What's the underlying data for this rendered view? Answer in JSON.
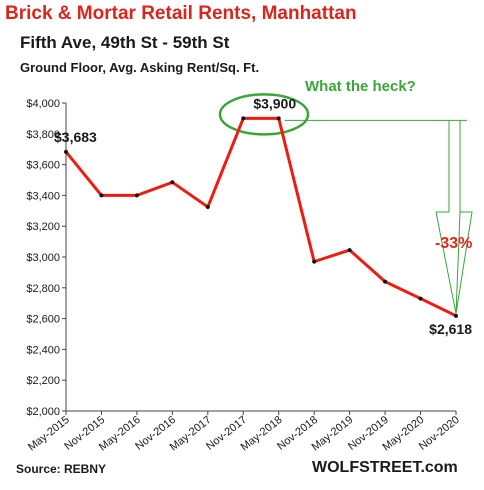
{
  "chart_data": {
    "type": "line",
    "title": "Brick & Mortar Retail Rents, Manhattan",
    "subtitle": "Fifth Ave, 49th St - 59th St",
    "subtitle2": "Ground Floor,  Avg. Asking Rent/Sq. Ft.",
    "categories": [
      "May-2015",
      "Nov-2015",
      "May-2016",
      "Nov-2016",
      "May-2017",
      "Nov-2017",
      "May-2018",
      "Nov-2018",
      "May-2019",
      "Nov-2019",
      "May-2020",
      "Nov-2020"
    ],
    "series": [
      {
        "values": [
          3683,
          3400,
          3400,
          3485,
          3325,
          3900,
          3900,
          2970,
          3045,
          2840,
          2730,
          2618
        ]
      }
    ],
    "ylim": [
      2000,
      4000
    ],
    "yticks": [
      2000,
      2200,
      2400,
      2600,
      2800,
      3000,
      3200,
      3400,
      3600,
      3800,
      4000
    ],
    "ytick_labels": [
      "$2,000",
      "$2,200",
      "$2,400",
      "$2,600",
      "$2,800",
      "$3,000",
      "$3,200",
      "$3,400",
      "$3,600",
      "$3,800",
      "$4,000"
    ],
    "data_labels": [
      {
        "index": 0,
        "text": "$3,683"
      },
      {
        "index": 6,
        "text": "$3,900"
      },
      {
        "index": 11,
        "text": "$2,618"
      }
    ],
    "annotations": {
      "callout": "What the heck?",
      "change": "-33%"
    },
    "colors": {
      "line": "#ee1c0e",
      "annotation_green": "#3aa53a",
      "title": "#d9261c"
    },
    "grid": false,
    "legend": "none"
  },
  "footer": {
    "source": "Source: REBNY",
    "brand": "WOLFSTREET.com"
  }
}
